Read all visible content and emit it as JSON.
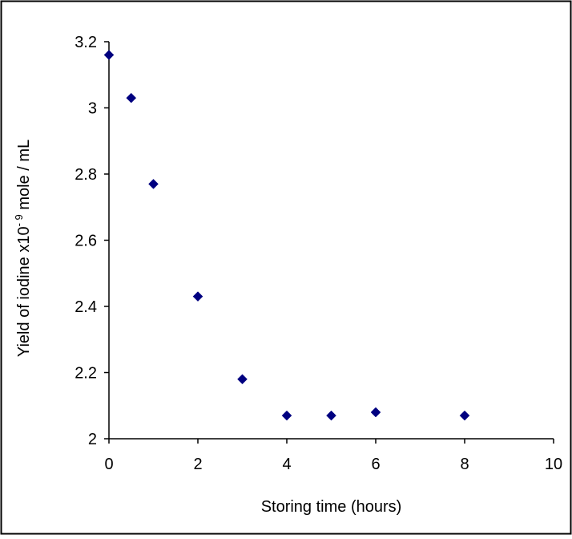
{
  "chart_data": {
    "type": "scatter",
    "title": "",
    "xlabel": "Storing time (hours)",
    "ylabel": {
      "prefix": "Yield of iodine x10",
      "exponent": "- 9",
      "suffix": " mole / mL"
    },
    "xlim": [
      0,
      10
    ],
    "ylim": [
      2,
      3.2
    ],
    "xticks": [
      "0",
      "2",
      "4",
      "6",
      "8",
      "10"
    ],
    "yticks": [
      "2",
      "2.2",
      "2.4",
      "2.6",
      "2.8",
      "3",
      "3.2"
    ],
    "grid": false,
    "legend": "none",
    "marker": "diamond",
    "marker_color": "#000080",
    "series": [
      {
        "x": [
          0,
          0.5,
          1,
          2,
          3,
          4,
          5,
          6,
          8
        ],
        "y": [
          3.16,
          3.03,
          2.77,
          2.43,
          2.18,
          2.07,
          2.07,
          2.08,
          2.07
        ]
      }
    ]
  }
}
